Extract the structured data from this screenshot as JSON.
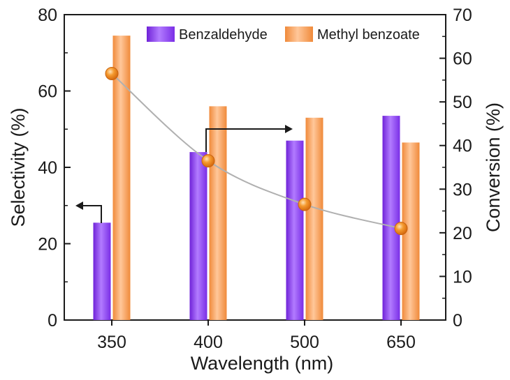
{
  "chart_data": {
    "type": "bar",
    "categories": [
      "350",
      "400",
      "500",
      "650"
    ],
    "xlabel": "Wavelength (nm)",
    "ylabel": "Selectivity (%)",
    "y2label": "Conversion (%)",
    "ylim": [
      0,
      80
    ],
    "y2lim": [
      0,
      70
    ],
    "yticks": [
      0,
      20,
      40,
      60,
      80
    ],
    "y2ticks": [
      0,
      10,
      20,
      30,
      40,
      50,
      60,
      70
    ],
    "grid": false,
    "legend_position": "top-right",
    "series": [
      {
        "name": "Benzaldehyde",
        "type": "bar",
        "axis": "left",
        "color": "#8a3ff0",
        "values": [
          25.5,
          44,
          47,
          53.5
        ]
      },
      {
        "name": "Methyl benzoate",
        "type": "bar",
        "axis": "left",
        "color": "#f6a05a",
        "values": [
          74.5,
          56,
          53,
          46.5
        ]
      },
      {
        "type": "line-scatter",
        "axis": "right",
        "color": "#f08a1e",
        "line_color": "#b0b0b0",
        "values": [
          56.5,
          36.5,
          26.5,
          21
        ]
      }
    ],
    "annotations": [
      {
        "kind": "arrow",
        "points_to": "left-axis",
        "attached_to": "Benzaldehyde 350"
      },
      {
        "kind": "arrow",
        "points_to": "right-axis",
        "attached_to": "Benzaldehyde 400"
      }
    ]
  }
}
